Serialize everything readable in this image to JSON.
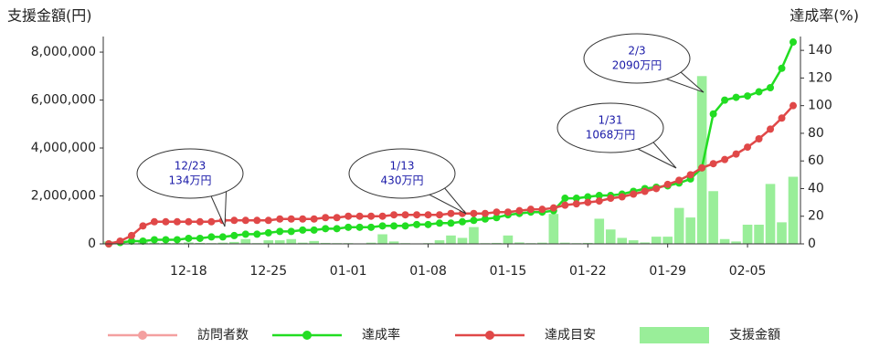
{
  "chart_data": {
    "type": "combo",
    "y_title": "支援金額(円)",
    "y2_title": "達成率(%)",
    "categories": [
      null,
      null,
      null,
      null,
      null,
      null,
      null,
      "12-18",
      null,
      null,
      null,
      null,
      null,
      null,
      "12-25",
      null,
      null,
      null,
      null,
      null,
      null,
      "01-01",
      null,
      null,
      null,
      null,
      null,
      null,
      "01-08",
      null,
      null,
      null,
      null,
      null,
      null,
      "01-15",
      null,
      null,
      null,
      null,
      null,
      null,
      "01-22",
      null,
      null,
      null,
      null,
      null,
      null,
      "01-29",
      null,
      null,
      null,
      null,
      null,
      null,
      "02-05",
      null,
      null,
      null,
      null
    ],
    "ylim": [
      0,
      8650000
    ],
    "yticks": [
      0,
      {
        "value": 2000000,
        "label": "2,000,000"
      },
      {
        "value": 4000000,
        "label": "4,000,000"
      },
      {
        "value": 6000000,
        "label": "6,000,000"
      },
      {
        "value": 8000000,
        "label": "8,000,000"
      }
    ],
    "y2lim": [
      0,
      150
    ],
    "y2ticks": [
      0,
      20,
      40,
      60,
      80,
      100,
      120,
      140
    ],
    "series": [
      {
        "name": "訪問者数",
        "kind": "line",
        "axis": "y2",
        "color": "#f4a0a0",
        "values": [
          null,
          null,
          null,
          null,
          null,
          null,
          null,
          null,
          null,
          null,
          null,
          null,
          null,
          null,
          null,
          null,
          null,
          null,
          null,
          null,
          null,
          null,
          null,
          null,
          null,
          null,
          null,
          null,
          null,
          null,
          null,
          null,
          null,
          null,
          null,
          null,
          null,
          null,
          null,
          null,
          null,
          null,
          null,
          null,
          null,
          null,
          null,
          null,
          null,
          null,
          null,
          null,
          null,
          null,
          null,
          null,
          null,
          null,
          null,
          null,
          null
        ]
      },
      {
        "name": "達成率",
        "kind": "line",
        "axis": "y2",
        "color": "#22dd22",
        "values": [
          0,
          1,
          2,
          2,
          3,
          3,
          3,
          4,
          4,
          5,
          5,
          6,
          7,
          7,
          8,
          9,
          9,
          10,
          10,
          11,
          11,
          12,
          12,
          12,
          13,
          13,
          13,
          14,
          14,
          15,
          15,
          16,
          17,
          18,
          19,
          21,
          22,
          23,
          23,
          24,
          33,
          33,
          34,
          35,
          35,
          36,
          38,
          40,
          41,
          42,
          44,
          47,
          55,
          94,
          104,
          106,
          107,
          110,
          113,
          127,
          146
        ]
      },
      {
        "name": "達成目安",
        "kind": "line",
        "axis": "y2",
        "color": "#e04848",
        "values": [
          0,
          2,
          6,
          13,
          16,
          16,
          16,
          16,
          16,
          16,
          17,
          17,
          17,
          17,
          17,
          18,
          18,
          18,
          18,
          19,
          19,
          20,
          20,
          20,
          20,
          21,
          21,
          21,
          21,
          21,
          22,
          22,
          22,
          22,
          23,
          23,
          24,
          25,
          25,
          26,
          28,
          29,
          30,
          31,
          33,
          34,
          36,
          38,
          40,
          43,
          46,
          50,
          55,
          58,
          61,
          65,
          70,
          76,
          83,
          91,
          100
        ]
      },
      {
        "name": "支援金額",
        "kind": "bar",
        "axis": "y",
        "color": "#99ee99",
        "values": [
          100000,
          50000,
          0,
          80000,
          50000,
          40000,
          30000,
          60000,
          40000,
          30000,
          50000,
          80000,
          200000,
          30000,
          150000,
          150000,
          200000,
          50000,
          120000,
          40000,
          30000,
          30000,
          20000,
          50000,
          400000,
          100000,
          30000,
          20000,
          30000,
          150000,
          350000,
          250000,
          700000,
          30000,
          40000,
          350000,
          60000,
          30000,
          50000,
          1250000,
          50000,
          30000,
          40000,
          1050000,
          600000,
          250000,
          150000,
          60000,
          300000,
          300000,
          1500000,
          1100000,
          7000000,
          2200000,
          200000,
          100000,
          800000,
          800000,
          2500000,
          900000,
          2800000
        ]
      }
    ],
    "annotations": [
      {
        "date": "12/23",
        "amount": "134万円"
      },
      {
        "date": "1/13",
        "amount": "430万円"
      },
      {
        "date": "1/31",
        "amount": "1068万円"
      },
      {
        "date": "2/3",
        "amount": "2090万円"
      }
    ]
  }
}
